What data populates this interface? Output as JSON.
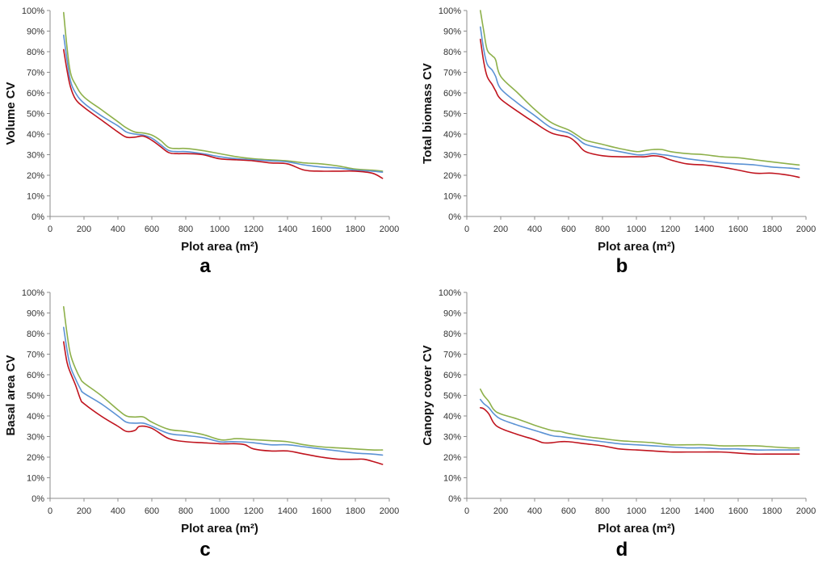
{
  "chart_data": [
    {
      "type": "line",
      "panel_label": "a",
      "xlabel": "Plot area (m²)",
      "ylabel": "Volume CV",
      "xlim": [
        0,
        2000
      ],
      "ylim": [
        0,
        100
      ],
      "x_ticks": [
        "0",
        "200",
        "400",
        "600",
        "800",
        "1000",
        "1200",
        "1400",
        "1600",
        "1800",
        "2000"
      ],
      "y_ticks": [
        "0%",
        "10%",
        "20%",
        "30%",
        "40%",
        "50%",
        "60%",
        "70%",
        "80%",
        "90%",
        "100%"
      ],
      "series": [
        {
          "name": "upper",
          "color": "#8db04a",
          "x": [
            80,
            100,
            120,
            150,
            200,
            300,
            400,
            450,
            500,
            550,
            600,
            650,
            700,
            750,
            800,
            900,
            1000,
            1100,
            1200,
            1300,
            1400,
            1500,
            1600,
            1700,
            1800,
            1900,
            1960
          ],
          "y": [
            99,
            82,
            70,
            64,
            58,
            52,
            46,
            43,
            41,
            40.5,
            39.5,
            37,
            33.5,
            33,
            33,
            32,
            30.5,
            29,
            28,
            27.5,
            27,
            26,
            25.5,
            24.5,
            23,
            22.5,
            22
          ]
        },
        {
          "name": "middle",
          "color": "#5b92d4",
          "x": [
            80,
            100,
            120,
            150,
            200,
            300,
            400,
            450,
            500,
            550,
            600,
            650,
            700,
            750,
            800,
            900,
            1000,
            1100,
            1200,
            1300,
            1400,
            1500,
            1600,
            1700,
            1800,
            1900,
            1960
          ],
          "y": [
            88,
            76,
            66,
            60,
            55,
            49,
            44,
            41,
            40,
            39.5,
            38,
            35,
            32,
            31.5,
            31.5,
            30.5,
            29,
            28,
            27.5,
            27,
            26.5,
            25,
            24,
            23.5,
            22.5,
            22,
            21.5
          ]
        },
        {
          "name": "lower",
          "color": "#c0141e",
          "x": [
            80,
            100,
            120,
            150,
            200,
            300,
            400,
            450,
            500,
            550,
            600,
            650,
            700,
            750,
            800,
            900,
            1000,
            1100,
            1200,
            1300,
            1400,
            1500,
            1600,
            1700,
            1800,
            1900,
            1960
          ],
          "y": [
            81,
            71,
            63,
            57,
            53,
            47,
            41,
            38.5,
            38.5,
            39,
            37,
            34,
            31,
            30.5,
            30.5,
            30,
            28,
            27.5,
            27,
            26,
            25.5,
            22.5,
            22,
            22,
            22,
            21,
            18.5
          ]
        }
      ]
    },
    {
      "type": "line",
      "panel_label": "b",
      "xlabel": "Plot area (m²)",
      "ylabel": "Total biomass CV",
      "xlim": [
        0,
        2000
      ],
      "ylim": [
        0,
        100
      ],
      "x_ticks": [
        "0",
        "200",
        "400",
        "600",
        "800",
        "1000",
        "1200",
        "1400",
        "1600",
        "1800",
        "2000"
      ],
      "y_ticks": [
        "0%",
        "10%",
        "20%",
        "30%",
        "40%",
        "50%",
        "60%",
        "70%",
        "80%",
        "90%",
        "100%"
      ],
      "series": [
        {
          "name": "upper",
          "color": "#8db04a",
          "x": [
            80,
            100,
            120,
            150,
            170,
            200,
            300,
            400,
            500,
            600,
            650,
            700,
            800,
            900,
            1000,
            1050,
            1100,
            1150,
            1200,
            1300,
            1400,
            1500,
            1600,
            1700,
            1800,
            1900,
            1960
          ],
          "y": [
            100,
            90,
            81,
            78,
            76,
            68,
            60,
            52,
            45.5,
            42,
            39.5,
            37,
            35,
            33,
            31.5,
            32,
            32.5,
            32.5,
            31.5,
            30.5,
            30,
            29,
            28.5,
            27.5,
            26.5,
            25.5,
            25
          ]
        },
        {
          "name": "middle",
          "color": "#5b92d4",
          "x": [
            80,
            100,
            120,
            150,
            170,
            200,
            300,
            400,
            500,
            600,
            650,
            700,
            800,
            900,
            1000,
            1050,
            1100,
            1150,
            1200,
            1300,
            1400,
            1500,
            1600,
            1700,
            1800,
            1900,
            1960
          ],
          "y": [
            92,
            81,
            74,
            71,
            68,
            62,
            55,
            49,
            43,
            40.5,
            38,
            35,
            33,
            31.5,
            30,
            30,
            30.5,
            30,
            29.5,
            28,
            27,
            26,
            25.5,
            25,
            24,
            23.5,
            23
          ]
        },
        {
          "name": "lower",
          "color": "#c0141e",
          "x": [
            80,
            100,
            120,
            150,
            170,
            200,
            300,
            400,
            500,
            600,
            650,
            700,
            800,
            900,
            1000,
            1050,
            1100,
            1150,
            1200,
            1300,
            1400,
            1500,
            1600,
            1700,
            1800,
            1900,
            1960
          ],
          "y": [
            86,
            75,
            68,
            64,
            61,
            57,
            51,
            45.5,
            40.5,
            38.5,
            35.5,
            31.5,
            29.5,
            29,
            29,
            29,
            29.5,
            29,
            27.5,
            25.5,
            25,
            24,
            22.5,
            21,
            21,
            20,
            19
          ]
        }
      ]
    },
    {
      "type": "line",
      "panel_label": "c",
      "xlabel": "Plot area (m²)",
      "ylabel": "Basal area CV",
      "xlim": [
        0,
        2000
      ],
      "ylim": [
        0,
        100
      ],
      "x_ticks": [
        "0",
        "200",
        "400",
        "600",
        "800",
        "1000",
        "1200",
        "1400",
        "1600",
        "1800",
        "2000"
      ],
      "y_ticks": [
        "0%",
        "10%",
        "20%",
        "30%",
        "40%",
        "50%",
        "60%",
        "70%",
        "80%",
        "90%",
        "100%"
      ],
      "series": [
        {
          "name": "upper",
          "color": "#8db04a",
          "x": [
            80,
            100,
            120,
            150,
            180,
            200,
            300,
            400,
            450,
            500,
            550,
            600,
            700,
            800,
            900,
            1000,
            1050,
            1100,
            1200,
            1300,
            1400,
            1500,
            1600,
            1700,
            1800,
            1900,
            1960
          ],
          "y": [
            93,
            80,
            70,
            63,
            58,
            56,
            50,
            43,
            40,
            39.5,
            39.5,
            37,
            33.5,
            32.5,
            31,
            28.5,
            28.5,
            29,
            28.5,
            28,
            27.5,
            26,
            25,
            24.5,
            24,
            23.5,
            23.5
          ]
        },
        {
          "name": "middle",
          "color": "#5b92d4",
          "x": [
            80,
            100,
            120,
            150,
            180,
            200,
            300,
            400,
            450,
            500,
            550,
            600,
            700,
            800,
            900,
            1000,
            1050,
            1100,
            1200,
            1300,
            1400,
            1500,
            1600,
            1700,
            1800,
            1900,
            1960
          ],
          "y": [
            83,
            72,
            64,
            58,
            53,
            51,
            46,
            40,
            37,
            36.5,
            36.5,
            35,
            31.5,
            30.5,
            29.5,
            27.5,
            27.5,
            27.5,
            27,
            26,
            26,
            25,
            24,
            23,
            22,
            21.5,
            21
          ]
        },
        {
          "name": "lower",
          "color": "#c0141e",
          "x": [
            80,
            100,
            120,
            150,
            180,
            200,
            300,
            400,
            450,
            500,
            530,
            600,
            700,
            800,
            900,
            1000,
            1050,
            1100,
            1150,
            1200,
            1300,
            1400,
            1500,
            1600,
            1700,
            1800,
            1850,
            1900,
            1960
          ],
          "y": [
            76,
            66,
            61,
            55,
            48,
            46,
            40,
            35,
            32.5,
            33,
            35,
            34,
            29,
            27.5,
            27,
            26.5,
            26.5,
            26.5,
            26,
            24,
            23,
            23,
            21.5,
            20,
            19,
            19,
            19,
            18,
            16.5
          ]
        }
      ]
    },
    {
      "type": "line",
      "panel_label": "d",
      "xlabel": "Plot area (m²)",
      "ylabel": "Canopy cover CV",
      "xlim": [
        0,
        2000
      ],
      "ylim": [
        0,
        100
      ],
      "x_ticks": [
        "0",
        "200",
        "400",
        "600",
        "800",
        "1000",
        "1200",
        "1400",
        "1600",
        "1800",
        "2000"
      ],
      "y_ticks": [
        "0%",
        "10%",
        "20%",
        "30%",
        "40%",
        "50%",
        "60%",
        "70%",
        "80%",
        "90%",
        "100%"
      ],
      "series": [
        {
          "name": "upper",
          "color": "#8db04a",
          "x": [
            80,
            100,
            130,
            160,
            200,
            300,
            400,
            500,
            550,
            600,
            700,
            800,
            900,
            1000,
            1100,
            1200,
            1300,
            1400,
            1500,
            1600,
            1700,
            1800,
            1900,
            1960
          ],
          "y": [
            53,
            50,
            47,
            43,
            41,
            38.5,
            35.5,
            33,
            32.5,
            31.5,
            30,
            29,
            28,
            27.5,
            27,
            26,
            26,
            26,
            25.5,
            25.5,
            25.5,
            25,
            24.5,
            24.5
          ]
        },
        {
          "name": "middle",
          "color": "#5b92d4",
          "x": [
            80,
            100,
            130,
            160,
            200,
            300,
            400,
            500,
            550,
            600,
            700,
            800,
            900,
            1000,
            1100,
            1200,
            1300,
            1400,
            1500,
            1600,
            1700,
            1800,
            1900,
            1960
          ],
          "y": [
            48,
            46,
            44,
            41,
            38.5,
            35.5,
            33,
            30.5,
            30,
            29.5,
            28.5,
            27.5,
            26.5,
            26,
            25.5,
            25,
            24.5,
            24.5,
            24,
            24,
            23.5,
            23.5,
            23.5,
            23.5
          ]
        },
        {
          "name": "lower",
          "color": "#c0141e",
          "x": [
            80,
            100,
            130,
            160,
            200,
            300,
            400,
            450,
            500,
            550,
            600,
            700,
            800,
            900,
            1000,
            1100,
            1200,
            1300,
            1400,
            1500,
            1600,
            1700,
            1800,
            1900,
            1960
          ],
          "y": [
            44,
            43.5,
            41,
            36.5,
            34,
            31,
            28.5,
            27,
            27,
            27.5,
            27.5,
            26.5,
            25.5,
            24,
            23.5,
            23,
            22.5,
            22.5,
            22.5,
            22.5,
            22,
            21.5,
            21.5,
            21.5,
            21.5
          ]
        }
      ]
    }
  ]
}
